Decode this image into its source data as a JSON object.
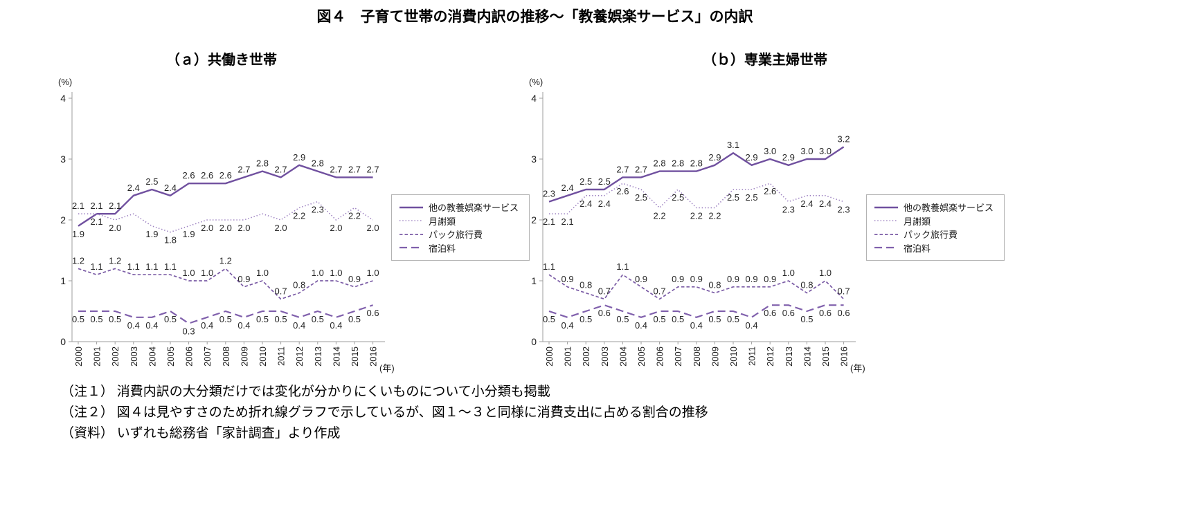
{
  "page": {
    "title": "図４　子育て世帯の消費内訳の推移～「教養娯楽サービス」の内訳",
    "notes": [
      "（注１） 消費内訳の大分類だけでは変化が分かりにくいものについて小分類も掲載",
      "（注２） 図４は見やすさのため折れ線グラフで示しているが、図１～３と同様に消費支出に占める割合の推移",
      "（資料） いずれも総務省「家計調査」より作成"
    ]
  },
  "colors": {
    "solid": "#70509F",
    "dotted": "#9B7FC0",
    "dashed": "#7A5BA5",
    "longdash": "#8060AC",
    "axis": "#9e9e9e",
    "tick_text": "#1a1a1a",
    "data_label": "#262626"
  },
  "chart_data": [
    {
      "type": "line",
      "title": "（ａ）共働き世帯",
      "x": [
        2000,
        2001,
        2002,
        2003,
        2004,
        2005,
        2006,
        2007,
        2008,
        2009,
        2010,
        2011,
        2012,
        2013,
        2014,
        2015,
        2016
      ],
      "xlabel": "(年)",
      "ylabel": "(%)",
      "ylim": [
        0,
        4
      ],
      "yticks": [
        0,
        1,
        2,
        3,
        4
      ],
      "grid": false,
      "legend_position": "right",
      "series": [
        {
          "name": "他の教養娯楽サービス",
          "style": "solid",
          "values": [
            1.9,
            2.1,
            2.1,
            2.4,
            2.5,
            2.4,
            2.6,
            2.6,
            2.6,
            2.7,
            2.8,
            2.7,
            2.9,
            2.8,
            2.7,
            2.7,
            2.7
          ],
          "labels": [
            "1.9",
            "2.1",
            "2.1",
            "2.4",
            "2.5",
            "2.4",
            "2.6",
            "2.6",
            "2.6",
            "2.7",
            "2.8",
            "2.7",
            "2.9",
            "2.8",
            "2.7",
            "2.7",
            "2.7"
          ],
          "label_side": "above",
          "side_overrides": {
            "0": "below"
          }
        },
        {
          "name": "月謝類",
          "style": "dotted",
          "values": [
            2.1,
            2.1,
            2.0,
            2.1,
            1.9,
            1.8,
            1.9,
            2.0,
            2.0,
            2.0,
            2.1,
            2.0,
            2.2,
            2.3,
            2.0,
            2.2,
            2.0
          ],
          "labels": [
            "2.1",
            "2.1",
            "2.0",
            "",
            "1.9",
            "1.8",
            "1.9",
            "2.0",
            "2.0",
            "2.0",
            "",
            "2.0",
            "2.2",
            "2.3",
            "2.0",
            "2.2",
            "2.0"
          ],
          "label_side": "below",
          "side_overrides": {
            "0": "above"
          }
        },
        {
          "name": "パック旅行費",
          "style": "dashed",
          "values": [
            1.2,
            1.1,
            1.2,
            1.1,
            1.1,
            1.1,
            1.0,
            1.0,
            1.2,
            0.9,
            1.0,
            0.7,
            0.8,
            1.0,
            1.0,
            0.9,
            1.0
          ],
          "labels": [
            "1.2",
            "1.1",
            "1.2",
            "1.1",
            "1.1",
            "1.1",
            "1.0",
            "1.0",
            "1.2",
            "0.9",
            "1.0",
            "0.7",
            "0.8",
            "1.0",
            "1.0",
            "0.9",
            "1.0"
          ],
          "label_side": "above"
        },
        {
          "name": "宿泊料",
          "style": "longdash",
          "values": [
            0.5,
            0.5,
            0.5,
            0.4,
            0.4,
            0.5,
            0.3,
            0.4,
            0.5,
            0.4,
            0.5,
            0.5,
            0.4,
            0.5,
            0.4,
            0.5,
            0.6
          ],
          "labels": [
            "0.5",
            "0.5",
            "0.5",
            "0.4",
            "0.4",
            "0.5",
            "0.3",
            "0.4",
            "0.5",
            "0.4",
            "0.5",
            "0.5",
            "0.4",
            "0.5",
            "0.4",
            "0.5",
            "0.6"
          ],
          "label_side": "below"
        }
      ]
    },
    {
      "type": "line",
      "title": "（ｂ）専業主婦世帯",
      "x": [
        2000,
        2001,
        2002,
        2003,
        2004,
        2005,
        2006,
        2007,
        2008,
        2009,
        2010,
        2011,
        2012,
        2013,
        2014,
        2015,
        2016
      ],
      "xlabel": "(年)",
      "ylabel": "(%)",
      "ylim": [
        0,
        4
      ],
      "yticks": [
        0,
        1,
        2,
        3,
        4
      ],
      "grid": false,
      "legend_position": "right",
      "series": [
        {
          "name": "他の教養娯楽サービス",
          "style": "solid",
          "values": [
            2.3,
            2.4,
            2.5,
            2.5,
            2.7,
            2.7,
            2.8,
            2.8,
            2.8,
            2.9,
            3.1,
            2.9,
            3.0,
            2.9,
            3.0,
            3.0,
            3.2
          ],
          "labels": [
            "2.3",
            "2.4",
            "2.5",
            "2.5",
            "2.7",
            "2.7",
            "2.8",
            "2.8",
            "2.8",
            "2.9",
            "3.1",
            "2.9",
            "3.0",
            "2.9",
            "3.0",
            "3.0",
            "3.2"
          ],
          "label_side": "above"
        },
        {
          "name": "月謝類",
          "style": "dotted",
          "values": [
            2.1,
            2.1,
            2.4,
            2.4,
            2.6,
            2.5,
            2.2,
            2.5,
            2.2,
            2.2,
            2.5,
            2.5,
            2.6,
            2.3,
            2.4,
            2.4,
            2.3
          ],
          "labels": [
            "2.1",
            "2.1",
            "2.4",
            "2.4",
            "2.6",
            "2.5",
            "2.2",
            "2.5",
            "2.2",
            "2.2",
            "2.5",
            "2.5",
            "2.6",
            "2.3",
            "2.4",
            "2.4",
            "2.3"
          ],
          "label_side": "below"
        },
        {
          "name": "パック旅行費",
          "style": "dashed",
          "values": [
            1.1,
            0.9,
            0.8,
            0.7,
            1.1,
            0.9,
            0.7,
            0.9,
            0.9,
            0.8,
            0.9,
            0.9,
            0.9,
            1.0,
            0.8,
            1.0,
            0.7
          ],
          "labels": [
            "1.1",
            "0.9",
            "0.8",
            "0.7",
            "1.1",
            "0.9",
            "0.7",
            "0.9",
            "0.9",
            "0.8",
            "0.9",
            "0.9",
            "0.9",
            "1.0",
            "0.8",
            "1.0",
            "0.7"
          ],
          "label_side": "above"
        },
        {
          "name": "宿泊料",
          "style": "longdash",
          "values": [
            0.5,
            0.4,
            0.5,
            0.6,
            0.5,
            0.4,
            0.5,
            0.5,
            0.4,
            0.5,
            0.5,
            0.4,
            0.6,
            0.6,
            0.5,
            0.6,
            0.6
          ],
          "labels": [
            "0.5",
            "0.4",
            "0.5",
            "0.6",
            "0.5",
            "0.4",
            "0.5",
            "0.5",
            "0.4",
            "0.5",
            "0.5",
            "0.4",
            "0.6",
            "0.6",
            "0.5",
            "0.6",
            "0.6"
          ],
          "label_side": "below"
        }
      ]
    }
  ]
}
